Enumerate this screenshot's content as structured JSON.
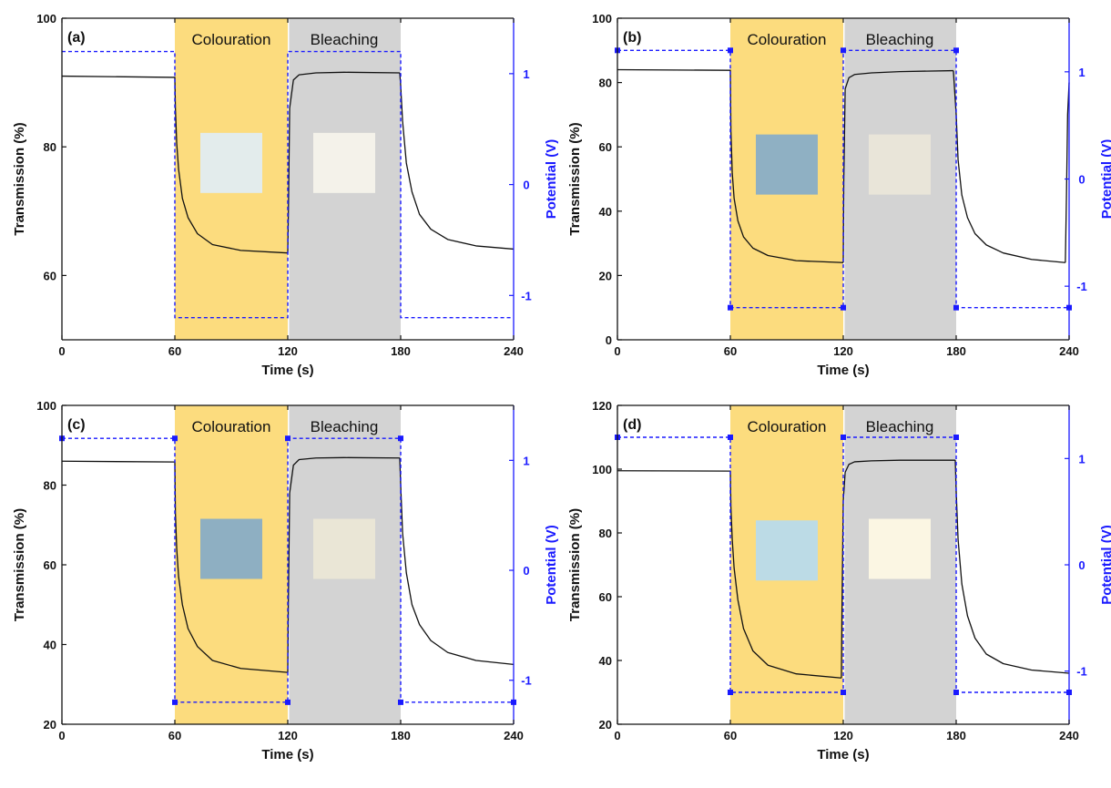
{
  "colors": {
    "colouration_band": "#fcdc7e",
    "bleaching_band": "#d3d3d3",
    "transmission_line": "#111111",
    "potential_line": "#1a1aff",
    "axis": "#111111",
    "right_axis": "#1a1aff"
  },
  "chart_data": [
    {
      "type": "line",
      "panel_label": "(a)",
      "xlabel": "Time (s)",
      "ylabel": "Transmission (%)",
      "y2label": "Potential (V)",
      "xlim": [
        0,
        240
      ],
      "ylim": [
        50,
        100
      ],
      "y2lim": [
        -1.4,
        1.5
      ],
      "x_ticks": [
        "0",
        "60",
        "120",
        "180",
        "240"
      ],
      "y_ticks": [
        "60",
        "80",
        "100"
      ],
      "y2_ticks": [
        "-1",
        "0",
        "1"
      ],
      "bands": [
        {
          "label": "Colouration",
          "x_start": 60,
          "x_end": 120,
          "color_key": "colouration_band"
        },
        {
          "label": "Bleaching",
          "x_start": 120,
          "x_end": 180,
          "color_key": "bleaching_band"
        }
      ],
      "swatches": [
        {
          "x_center": 90,
          "y_center": 77.5,
          "color": "#e3ecec"
        },
        {
          "x_center": 150,
          "y_center": 77.5,
          "color": "#f4f2ea"
        }
      ],
      "series": [
        {
          "kind": "transmission",
          "y_axis": "left",
          "x": [
            0,
            60,
            60.3,
            61,
            62,
            64,
            67,
            72,
            80,
            95,
            120
          ],
          "y": [
            91,
            90.8,
            86,
            80.5,
            76.5,
            72,
            69,
            66.5,
            64.8,
            63.9,
            63.5
          ]
        },
        {
          "kind": "transmission",
          "y_axis": "left",
          "x": [
            120,
            120.3,
            121,
            123,
            126,
            135,
            150,
            179.5
          ],
          "y": [
            63.5,
            69,
            86,
            90.4,
            91.2,
            91.5,
            91.6,
            91.5
          ]
        },
        {
          "kind": "transmission",
          "y_axis": "left",
          "x": [
            179.5,
            180,
            181,
            183,
            186,
            190,
            196,
            205,
            220,
            240
          ],
          "y": [
            91.5,
            89.5,
            84,
            77.5,
            73,
            69.5,
            67.2,
            65.6,
            64.6,
            64.1
          ]
        },
        {
          "kind": "potential",
          "y_axis": "right",
          "x": [
            0,
            60,
            60,
            120,
            120,
            180,
            180,
            240
          ],
          "y": [
            1.2,
            1.2,
            -1.2,
            -1.2,
            1.2,
            1.2,
            -1.2,
            -1.2
          ],
          "markers": false
        }
      ]
    },
    {
      "type": "line",
      "panel_label": "(b)",
      "xlabel": "Time (s)",
      "ylabel": "Transmission (%)",
      "y2label": "Potential (V)",
      "xlim": [
        0,
        240
      ],
      "ylim": [
        0,
        100
      ],
      "y2lim": [
        -1.5,
        1.5
      ],
      "x_ticks": [
        "0",
        "60",
        "120",
        "180",
        "240"
      ],
      "y_ticks": [
        "0",
        "20",
        "40",
        "60",
        "80",
        "100"
      ],
      "y2_ticks": [
        "-1",
        "0",
        "1"
      ],
      "bands": [
        {
          "label": "Colouration",
          "x_start": 60,
          "x_end": 120,
          "color_key": "colouration_band"
        },
        {
          "label": "Bleaching",
          "x_start": 120,
          "x_end": 180,
          "color_key": "bleaching_band"
        }
      ],
      "swatches": [
        {
          "x_center": 90,
          "y_center": 54.5,
          "color": "#8fb0c3"
        },
        {
          "x_center": 150,
          "y_center": 54.5,
          "color": "#e9e5d9"
        }
      ],
      "series": [
        {
          "kind": "transmission",
          "y_axis": "left",
          "x": [
            0,
            60,
            60.3,
            61,
            62,
            64,
            67,
            72,
            80,
            95,
            120
          ],
          "y": [
            84,
            83.8,
            65,
            52,
            44,
            37,
            32,
            28.5,
            26.2,
            24.6,
            24
          ]
        },
        {
          "kind": "transmission",
          "y_axis": "left",
          "x": [
            120,
            120.3,
            121,
            123,
            126,
            135,
            150,
            178.5
          ],
          "y": [
            24,
            50,
            78,
            81.5,
            82.5,
            83,
            83.4,
            83.7
          ]
        },
        {
          "kind": "transmission",
          "y_axis": "left",
          "x": [
            178.5,
            180,
            181,
            183,
            186,
            190,
            196,
            205,
            220,
            238
          ],
          "y": [
            83.7,
            70,
            56,
            45,
            38,
            33,
            29.5,
            27,
            25,
            24
          ]
        },
        {
          "kind": "transmission",
          "y_axis": "left",
          "x": [
            238,
            238.6,
            239.2,
            240
          ],
          "y": [
            24,
            45,
            70,
            80
          ]
        },
        {
          "kind": "potential",
          "y_axis": "right",
          "x": [
            0,
            60,
            60,
            120,
            120,
            180,
            180,
            240
          ],
          "y": [
            1.2,
            1.2,
            -1.2,
            -1.2,
            1.2,
            1.2,
            -1.2,
            -1.2
          ],
          "markers": true,
          "marker_x": [
            0,
            60,
            60,
            120,
            120,
            180,
            180,
            240
          ]
        }
      ]
    },
    {
      "type": "line",
      "panel_label": "(c)",
      "xlabel": "Time (s)",
      "ylabel": "Transmission (%)",
      "y2label": "Potential (V)",
      "xlim": [
        0,
        240
      ],
      "ylim": [
        20,
        100
      ],
      "y2lim": [
        -1.4,
        1.5
      ],
      "x_ticks": [
        "0",
        "60",
        "120",
        "180",
        "240"
      ],
      "y_ticks": [
        "20",
        "40",
        "60",
        "80",
        "100"
      ],
      "y2_ticks": [
        "-1",
        "0",
        "1"
      ],
      "bands": [
        {
          "label": "Colouration",
          "x_start": 60,
          "x_end": 120,
          "color_key": "colouration_band"
        },
        {
          "label": "Bleaching",
          "x_start": 120,
          "x_end": 180,
          "color_key": "bleaching_band"
        }
      ],
      "swatches": [
        {
          "x_center": 90,
          "y_center": 64,
          "color": "#8eafc2"
        },
        {
          "x_center": 150,
          "y_center": 64,
          "color": "#eae6d6"
        }
      ],
      "series": [
        {
          "kind": "transmission",
          "y_axis": "left",
          "x": [
            0,
            60,
            60.3,
            61,
            62,
            64,
            67,
            72,
            80,
            95,
            120
          ],
          "y": [
            86,
            85.8,
            73,
            64,
            57,
            50,
            44,
            39.5,
            36,
            34,
            33
          ]
        },
        {
          "kind": "transmission",
          "y_axis": "left",
          "x": [
            120,
            120.3,
            121,
            123,
            126,
            135,
            150,
            179.5
          ],
          "y": [
            33,
            50,
            78,
            85,
            86.4,
            86.8,
            86.9,
            86.8
          ]
        },
        {
          "kind": "transmission",
          "y_axis": "left",
          "x": [
            179.5,
            180,
            181,
            183,
            186,
            190,
            196,
            205,
            220,
            240
          ],
          "y": [
            86.8,
            80,
            68,
            58,
            50,
            45,
            41,
            38,
            36,
            35
          ]
        },
        {
          "kind": "potential",
          "y_axis": "right",
          "x": [
            0,
            60,
            60,
            120,
            120,
            180,
            180,
            240
          ],
          "y": [
            1.2,
            1.2,
            -1.2,
            -1.2,
            1.2,
            1.2,
            -1.2,
            -1.2
          ],
          "markers": true,
          "marker_x": [
            0,
            60,
            60,
            120,
            120,
            180,
            180,
            240
          ]
        }
      ]
    },
    {
      "type": "line",
      "panel_label": "(d)",
      "xlabel": "Time (s)",
      "ylabel": "Transmission (%)",
      "y2label": "Potential (V)",
      "xlim": [
        0,
        240
      ],
      "ylim": [
        20,
        120
      ],
      "y2lim": [
        -1.5,
        1.5
      ],
      "x_ticks": [
        "0",
        "60",
        "120",
        "180",
        "240"
      ],
      "y_ticks": [
        "20",
        "40",
        "60",
        "80",
        "100",
        "120"
      ],
      "y2_ticks": [
        "-1",
        "0",
        "1"
      ],
      "bands": [
        {
          "label": "Colouration",
          "x_start": 60,
          "x_end": 120,
          "color_key": "colouration_band"
        },
        {
          "label": "Bleaching",
          "x_start": 120,
          "x_end": 180,
          "color_key": "bleaching_band"
        }
      ],
      "swatches": [
        {
          "x_center": 90,
          "y_center": 74.5,
          "color": "#bcdbe6"
        },
        {
          "x_center": 150,
          "y_center": 75,
          "color": "#fbf6e3"
        }
      ],
      "series": [
        {
          "kind": "transmission",
          "y_axis": "left",
          "x": [
            0,
            60,
            60.3,
            61,
            62,
            64,
            67,
            72,
            80,
            95,
            119
          ],
          "y": [
            99.5,
            99.4,
            88,
            78,
            69,
            59,
            50,
            43,
            38.5,
            35.8,
            34.5
          ]
        },
        {
          "kind": "transmission",
          "y_axis": "left",
          "x": [
            119,
            119.3,
            120,
            121,
            123,
            126,
            135,
            150,
            179.5
          ],
          "y": [
            34.5,
            55,
            90,
            99,
            101.5,
            102.3,
            102.6,
            102.8,
            102.8
          ]
        },
        {
          "kind": "transmission",
          "y_axis": "left",
          "x": [
            179.5,
            180,
            181,
            183,
            186,
            190,
            196,
            205,
            220,
            240
          ],
          "y": [
            102.8,
            93,
            78,
            64,
            54,
            47,
            42,
            39,
            37,
            36
          ]
        },
        {
          "kind": "potential",
          "y_axis": "right",
          "x": [
            0,
            60,
            60,
            120,
            120,
            180,
            180,
            240
          ],
          "y": [
            1.2,
            1.2,
            -1.2,
            -1.2,
            1.2,
            1.2,
            -1.2,
            -1.2
          ],
          "markers": true,
          "marker_x": [
            0,
            60,
            60,
            120,
            120,
            180,
            180,
            240
          ]
        }
      ]
    }
  ]
}
